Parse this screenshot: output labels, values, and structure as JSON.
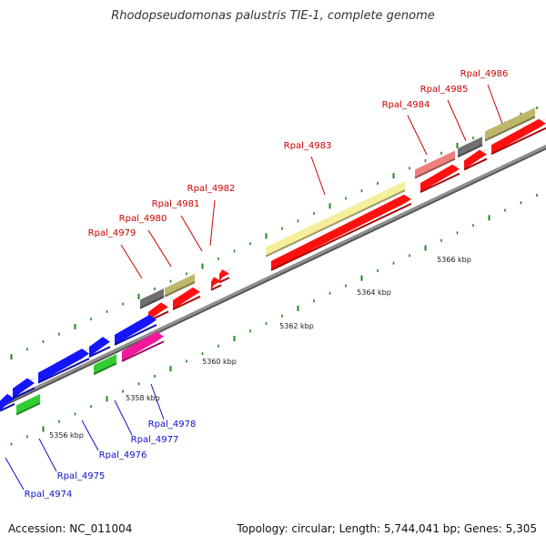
{
  "title": "Rhodopseudomonas palustris TIE-1, complete genome",
  "footer": {
    "accession": "Accession: NC_011004",
    "topology": "Topology: circular; Length: 5,744,041 bp; Genes: 5,305"
  },
  "colors": {
    "backbone": "#909090",
    "tick": "#1a8a1a",
    "label_upper": "#cc0000",
    "label_lower": "#1010cc",
    "red": "#ff1010",
    "blue": "#1414ff",
    "green": "#33cc33",
    "magenta": "#f0199a",
    "gray": "#707070",
    "olive": "#bdb76b",
    "pale_yellow": "#f5ee9c",
    "pink": "#ef8080"
  },
  "scale": [
    {
      "label": "5356 kbp"
    },
    {
      "label": "5358 kbp"
    },
    {
      "label": "5360 kbp"
    },
    {
      "label": "5362 kbp"
    },
    {
      "label": "5364 kbp"
    },
    {
      "label": "5366 kbp"
    }
  ],
  "genes": [
    {
      "label": "Rpal_4974",
      "strand": "lower"
    },
    {
      "label": "Rpal_4975",
      "strand": "lower"
    },
    {
      "label": "Rpal_4976",
      "strand": "lower"
    },
    {
      "label": "Rpal_4977",
      "strand": "lower"
    },
    {
      "label": "Rpal_4978",
      "strand": "lower"
    },
    {
      "label": "Rpal_4979",
      "strand": "upper"
    },
    {
      "label": "Rpal_4980",
      "strand": "upper"
    },
    {
      "label": "Rpal_4981",
      "strand": "upper"
    },
    {
      "label": "Rpal_4982",
      "strand": "upper"
    },
    {
      "label": "Rpal_4983",
      "strand": "upper"
    },
    {
      "label": "Rpal_4984",
      "strand": "upper"
    },
    {
      "label": "Rpal_4985",
      "strand": "upper"
    },
    {
      "label": "Rpal_4986",
      "strand": "upper"
    }
  ]
}
